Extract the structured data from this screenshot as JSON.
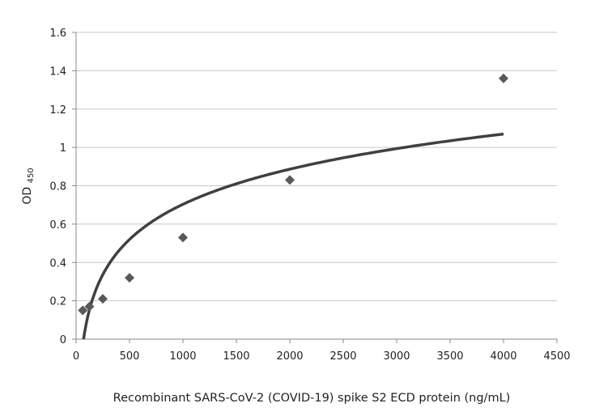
{
  "chart_data": {
    "type": "scatter",
    "title": "",
    "xlabel": "Recombinant SARS-CoV-2 (COVID-19) spike S2 ECD protein (ng/mL)",
    "ylabel": "OD",
    "ylabel_sub": "450",
    "xlim": [
      0,
      4500
    ],
    "ylim": [
      0,
      1.6
    ],
    "xticks": [
      0,
      500,
      1000,
      1500,
      2000,
      2500,
      3000,
      3500,
      4000,
      4500
    ],
    "yticks": [
      0,
      0.2,
      0.4,
      0.6,
      0.8,
      1,
      1.2,
      1.4,
      1.6
    ],
    "grid": "horizontal",
    "legend": "none",
    "points": [
      {
        "x": 62.5,
        "y": 0.15
      },
      {
        "x": 125,
        "y": 0.17
      },
      {
        "x": 250,
        "y": 0.21
      },
      {
        "x": 500,
        "y": 0.32
      },
      {
        "x": 1000,
        "y": 0.53
      },
      {
        "x": 2000,
        "y": 0.83
      },
      {
        "x": 4000,
        "y": 1.36
      }
    ],
    "trendline": {
      "type": "logarithmic",
      "a": 0.2645,
      "b": -1.124,
      "x_range": [
        70,
        4000
      ]
    },
    "colors": {
      "marker": "#595959",
      "line": "#404040",
      "grid": "#c8c8c8"
    }
  }
}
